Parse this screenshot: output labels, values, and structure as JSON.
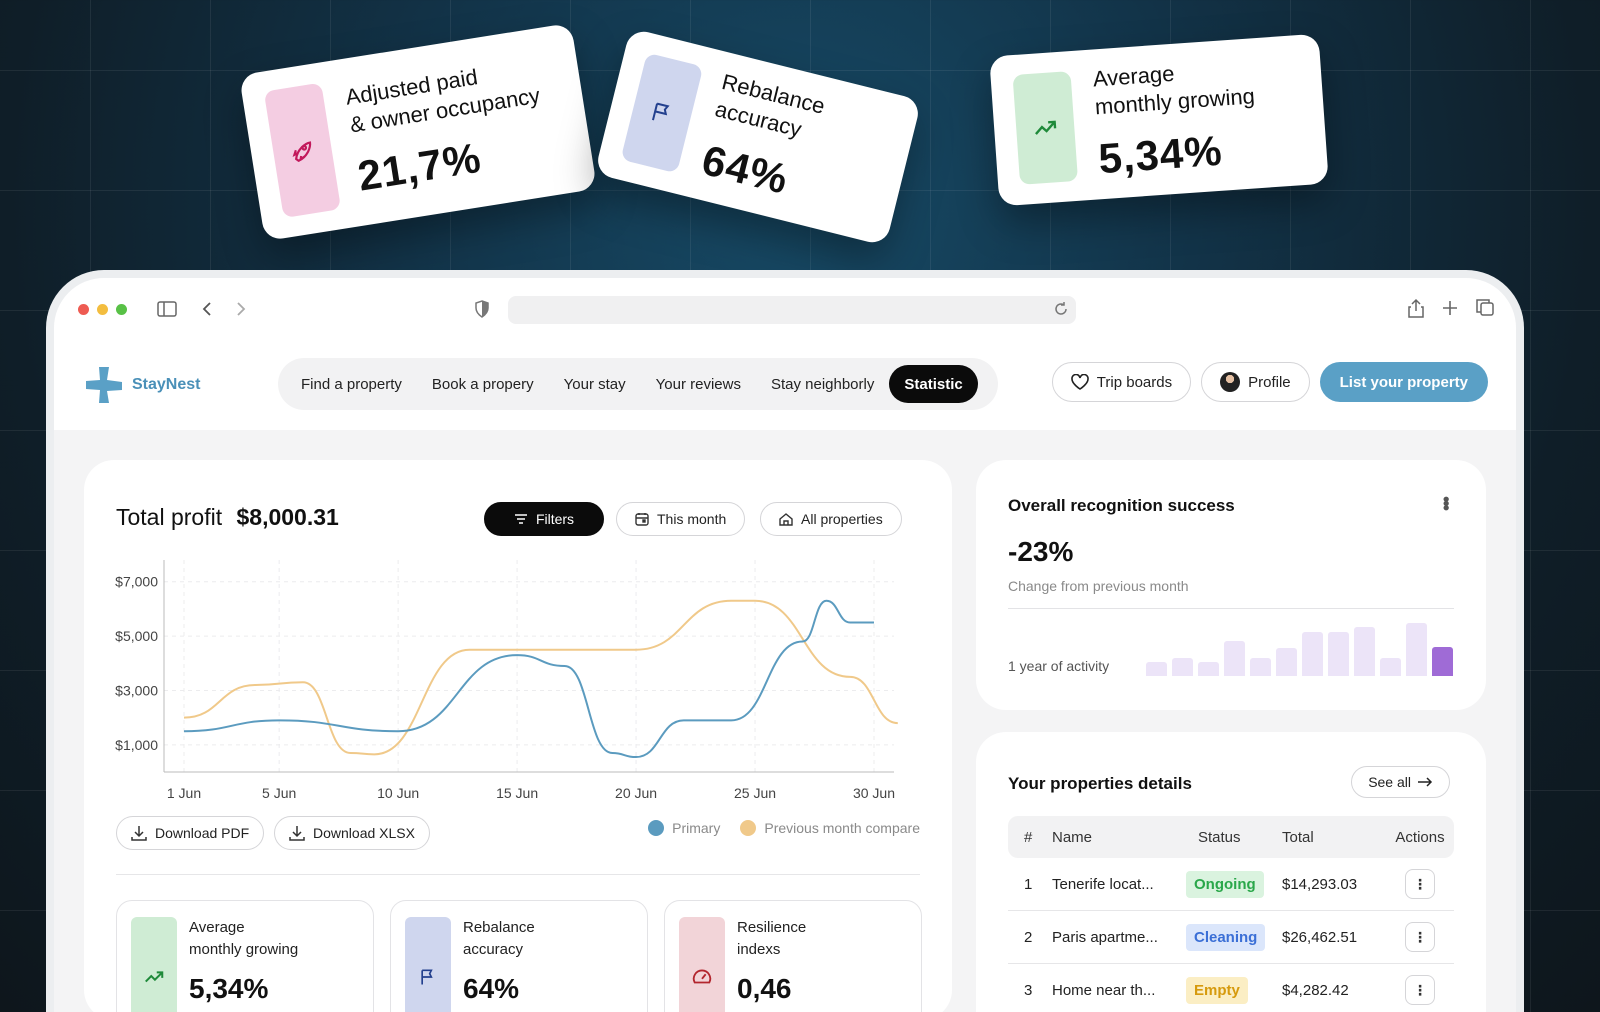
{
  "floating_cards": [
    {
      "label_line1": "Adjusted paid",
      "label_line2": "& owner occupancy",
      "value": "21,7%",
      "icon": "rocket-icon",
      "color": "#f4cde2"
    },
    {
      "label_line1": "Rebalance",
      "label_line2": "accuracy",
      "value": "64%",
      "icon": "flag-icon",
      "color": "#cfd6ee"
    },
    {
      "label_line1": "Average",
      "label_line2": "monthly growing",
      "value": "5,34%",
      "icon": "trend-up-icon",
      "color": "#cfecd4"
    }
  ],
  "browser": {
    "url": ""
  },
  "nav": {
    "logo_text": "StayNest",
    "items": [
      "Find a property",
      "Book a propery",
      "Your stay",
      "Your reviews",
      "Stay neighborly",
      "Statistic"
    ],
    "active": "Statistic",
    "trip_boards": "Trip boards",
    "profile": "Profile",
    "list_property": "List your property"
  },
  "profit": {
    "label": "Total profit",
    "amount": "$8,000.31",
    "filters": "Filters",
    "period": "This month",
    "scope": "All properties",
    "download_pdf": "Download PDF",
    "download_xlsx": "Download XLSX"
  },
  "chart_data": {
    "type": "line",
    "x": [
      "1 Jun",
      "5 Jun",
      "10 Jun",
      "15 Jun",
      "20 Jun",
      "25 Jun",
      "30 Jun"
    ],
    "y_ticks": [
      "$7,000",
      "$5,000",
      "$3,000",
      "$1,000"
    ],
    "series": [
      {
        "name": "Primary",
        "color": "#5b9bbf",
        "points": [
          [
            1,
            1500
          ],
          [
            5,
            1900
          ],
          [
            10,
            1500
          ],
          [
            15,
            4300
          ],
          [
            17,
            3900
          ],
          [
            19,
            700
          ],
          [
            20,
            550
          ],
          [
            22,
            1900
          ],
          [
            24,
            1900
          ],
          [
            27,
            4800
          ],
          [
            28,
            6300
          ],
          [
            29,
            5500
          ],
          [
            30,
            5500
          ]
        ]
      },
      {
        "name": "Previous month compare",
        "color": "#f0c98a",
        "points": [
          [
            1,
            2000
          ],
          [
            4,
            3200
          ],
          [
            6,
            3300
          ],
          [
            8,
            700
          ],
          [
            9,
            650
          ],
          [
            13,
            4500
          ],
          [
            20,
            4500
          ],
          [
            24,
            6300
          ],
          [
            25,
            6300
          ],
          [
            29,
            3500
          ],
          [
            31,
            1800
          ]
        ]
      }
    ],
    "ylim": [
      0,
      7800
    ],
    "xlim": [
      0,
      31
    ],
    "legend": "bottom-right",
    "grid": true
  },
  "stats": [
    {
      "label_line1": "Average",
      "label_line2": "monthly growing",
      "value": "5,34%",
      "icon": "trend-up-icon",
      "color": "#cfecd4"
    },
    {
      "label_line1": "Rebalance",
      "label_line2": "accuracy",
      "value": "64%",
      "icon": "flag-icon",
      "color": "#cfd6ee"
    },
    {
      "label_line1": "Resilience",
      "label_line2": "indexs",
      "value": "0,46",
      "icon": "gauge-icon",
      "color": "#f2d4d8"
    }
  ],
  "recognition": {
    "title": "Overall recognition success",
    "value": "-23%",
    "sub": "Change from previous month",
    "activity_label": "1 year of activity",
    "bars": [
      0.25,
      0.33,
      0.25,
      0.62,
      0.33,
      0.5,
      0.78,
      0.78,
      0.87,
      0.33,
      0.95,
      0.52
    ]
  },
  "properties": {
    "title": "Your properties details",
    "see_all": "See all",
    "headers": [
      "#",
      "Name",
      "Status",
      "Total",
      "Actions"
    ],
    "rows": [
      {
        "num": "1",
        "name": "Tenerife locat...",
        "status": "Ongoing",
        "total": "$14,293.03",
        "status_bg": "#daf3df",
        "status_fg": "#2aa74a"
      },
      {
        "num": "2",
        "name": "Paris apartme...",
        "status": "Cleaning",
        "total": "$26,462.51",
        "status_bg": "#dbe6fb",
        "status_fg": "#3b6fd6"
      },
      {
        "num": "3",
        "name": "Home near th...",
        "status": "Empty",
        "total": "$4,282.42",
        "status_bg": "#fbeec4",
        "status_fg": "#d69a0d"
      }
    ]
  }
}
